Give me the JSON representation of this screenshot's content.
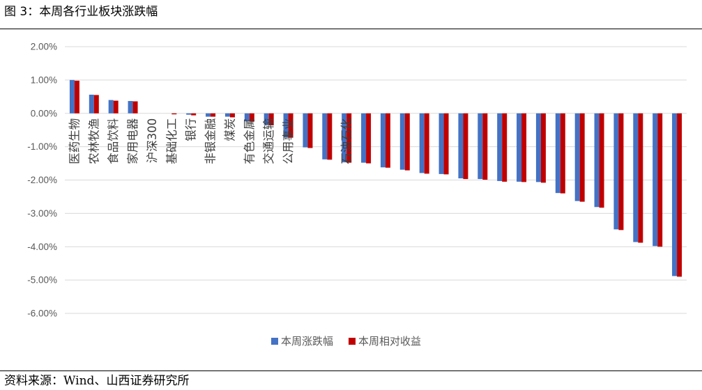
{
  "figure": {
    "title": "图 3：本周各行业板块涨跌幅",
    "source": "资料来源：Wind、山西证券研究所"
  },
  "colors": {
    "series_1": "#4472C4",
    "series_2": "#C00000",
    "grid": "#D9D9D9",
    "axis_text": "#595959"
  },
  "chart_data": {
    "type": "bar",
    "title": "",
    "xlabel": "",
    "ylabel": "",
    "ylim": [
      -6,
      2
    ],
    "yticks": [
      -6,
      -5,
      -4,
      -3,
      -2,
      -1,
      0,
      1,
      2
    ],
    "ytick_labels": [
      "-6.00%",
      "-5.00%",
      "-4.00%",
      "-3.00%",
      "-2.00%",
      "-1.00%",
      "0.00%",
      "1.00%",
      "2.00%"
    ],
    "y_unit": "%",
    "grid": true,
    "legend_position": "bottom",
    "categories": [
      "医药生物",
      "农林牧渔",
      "食品饮料",
      "家用电器",
      "沪深300",
      "基础化工",
      "银行",
      "非银金融",
      "煤炭",
      "有色金属",
      "交通运输",
      "公用事业",
      "",
      "",
      "石油石化",
      "",
      "",
      "",
      "",
      "",
      "",
      "",
      "",
      "",
      "",
      "",
      "",
      "",
      "",
      "",
      "",
      ""
    ],
    "series": [
      {
        "name": "本周涨跌幅",
        "values": [
          1.0,
          0.56,
          0.4,
          0.37,
          0.0,
          0.0,
          -0.04,
          -0.1,
          -0.1,
          -0.24,
          -0.35,
          -0.72,
          -1.02,
          -1.38,
          -1.47,
          -1.48,
          -1.62,
          -1.69,
          -1.79,
          -1.82,
          -1.95,
          -1.97,
          -2.03,
          -2.05,
          -2.06,
          -2.39,
          -2.63,
          -2.81,
          -3.48,
          -3.86,
          -3.98,
          -4.88
        ]
      },
      {
        "name": "本周相对收益",
        "values": [
          0.98,
          0.55,
          0.38,
          0.36,
          0.0,
          -0.03,
          -0.06,
          -0.1,
          -0.12,
          -0.25,
          -0.36,
          -0.73,
          -1.04,
          -1.39,
          -1.48,
          -1.5,
          -1.63,
          -1.71,
          -1.81,
          -1.83,
          -1.97,
          -1.99,
          -2.05,
          -2.06,
          -2.08,
          -2.4,
          -2.65,
          -2.83,
          -3.5,
          -3.88,
          -4.0,
          -4.9
        ]
      }
    ]
  }
}
